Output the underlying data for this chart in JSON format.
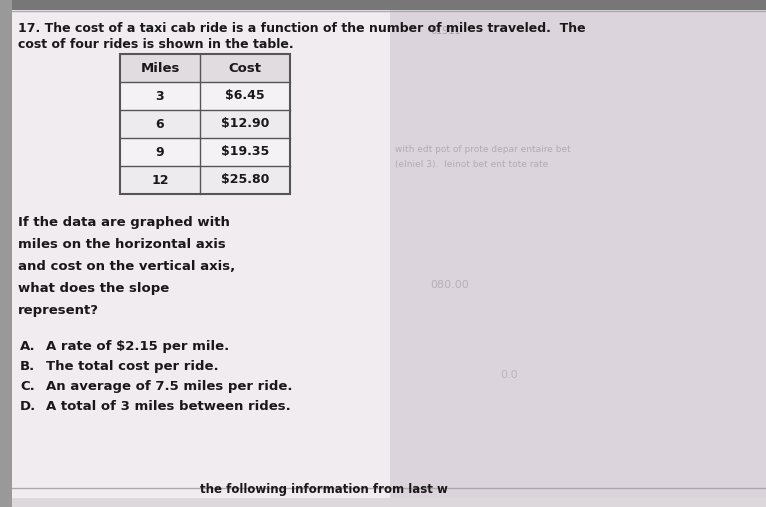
{
  "question_number": "17.",
  "question_text_line1": " The cost of a taxi cab ride is a function of the number of miles traveled.  The",
  "question_text_line2": "cost of four rides is shown in the table.",
  "table_headers": [
    "Miles",
    "Cost"
  ],
  "table_data": [
    [
      "3",
      "$6.45"
    ],
    [
      "6",
      "$12.90"
    ],
    [
      "9",
      "$19.35"
    ],
    [
      "12",
      "$25.80"
    ]
  ],
  "body_text_lines": [
    "If the data are graphed with",
    "miles on the horizontal axis",
    "and cost on the vertical axis,",
    "what does the slope",
    "represent?"
  ],
  "choices": [
    [
      "A.",
      "A rate of $2.15 per mile."
    ],
    [
      "B.",
      "The total cost per ride."
    ],
    [
      "C.",
      "An average of 7.5 miles per ride."
    ],
    [
      "D.",
      "A total of 3 miles between rides."
    ]
  ],
  "bottom_text": "the following information from last w",
  "bg_top_color": "#b0a8b0",
  "bg_paper_color": "#ddd8dc",
  "paper_white": "#e8e4e8",
  "paper_light": "#f0ecf0",
  "right_bg_color": "#ccc4cc",
  "text_color": "#1a1818",
  "table_line_color": "#555555",
  "top_bar_color": "#888888",
  "left_bar_color": "#999999",
  "font_size_q": 9.0,
  "font_size_body": 9.5,
  "font_size_choices": 9.5,
  "font_size_table": 9.0
}
